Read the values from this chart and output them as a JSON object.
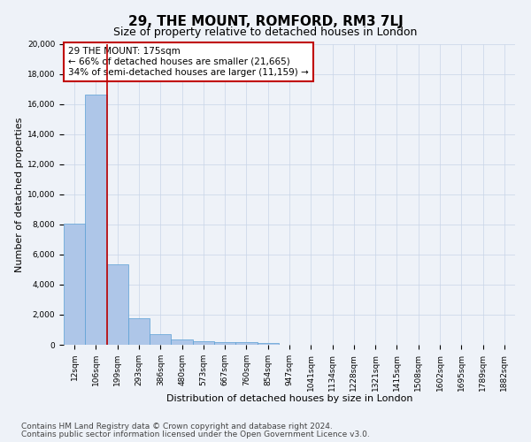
{
  "title": "29, THE MOUNT, ROMFORD, RM3 7LJ",
  "subtitle": "Size of property relative to detached houses in London",
  "xlabel": "Distribution of detached houses by size in London",
  "ylabel": "Number of detached properties",
  "footnote1": "Contains HM Land Registry data © Crown copyright and database right 2024.",
  "footnote2": "Contains public sector information licensed under the Open Government Licence v3.0.",
  "annotation_line1": "29 THE MOUNT: 175sqm",
  "annotation_line2": "← 66% of detached houses are smaller (21,665)",
  "annotation_line3": "34% of semi-detached houses are larger (11,159) →",
  "bar_labels": [
    "12sqm",
    "106sqm",
    "199sqm",
    "293sqm",
    "386sqm",
    "480sqm",
    "573sqm",
    "667sqm",
    "760sqm",
    "854sqm",
    "947sqm",
    "1041sqm",
    "1134sqm",
    "1228sqm",
    "1321sqm",
    "1415sqm",
    "1508sqm",
    "1602sqm",
    "1695sqm",
    "1789sqm",
    "1882sqm"
  ],
  "bar_values": [
    8050,
    16650,
    5350,
    1780,
    720,
    340,
    220,
    185,
    160,
    110,
    0,
    0,
    0,
    0,
    0,
    0,
    0,
    0,
    0,
    0,
    0
  ],
  "bar_color": "#aec6e8",
  "bar_edge_color": "#5a9fd4",
  "vline_color": "#c00000",
  "vline_x_idx": 1,
  "ylim": [
    0,
    20000
  ],
  "yticks": [
    0,
    2000,
    4000,
    6000,
    8000,
    10000,
    12000,
    14000,
    16000,
    18000,
    20000
  ],
  "grid_color": "#c8d4e8",
  "background_color": "#eef2f8",
  "annotation_box_color": "#ffffff",
  "annotation_box_edge": "#c00000",
  "title_fontsize": 11,
  "subtitle_fontsize": 9,
  "xlabel_fontsize": 8,
  "ylabel_fontsize": 8,
  "tick_fontsize": 6.5,
  "annotation_fontsize": 7.5,
  "footnote_fontsize": 6.5
}
